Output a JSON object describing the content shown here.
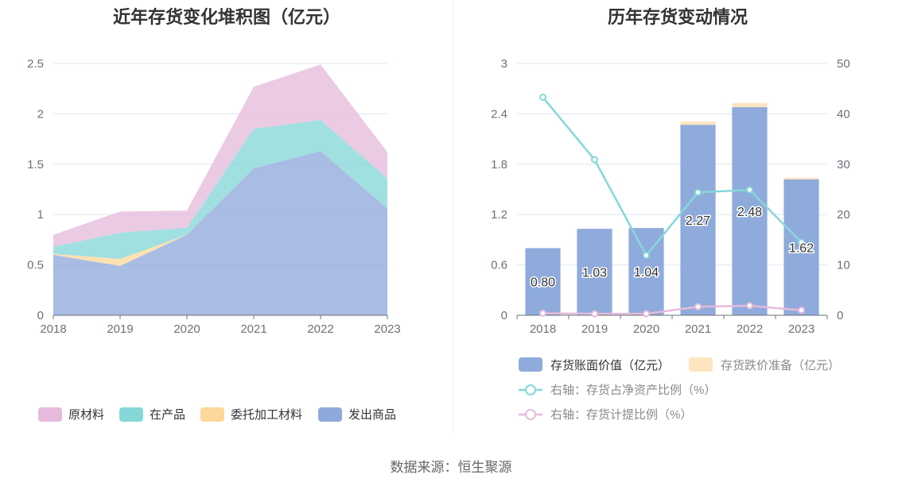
{
  "source_text": "数据来源：恒生聚源",
  "chart_data": [
    {
      "type": "area",
      "title": "近年存货变化堆积图（亿元）",
      "x": [
        "2018",
        "2019",
        "2020",
        "2021",
        "2022",
        "2023"
      ],
      "ylim": [
        0,
        2.5
      ],
      "yticks": [
        "0",
        "0.5",
        "1",
        "1.5",
        "2",
        "2.5"
      ],
      "stacked": true,
      "series": [
        {
          "name": "发出商品",
          "color": "#8fa9dc",
          "values": [
            0.6,
            0.49,
            0.8,
            1.46,
            1.63,
            1.06
          ]
        },
        {
          "name": "委托加工材料",
          "color": "#fdd89a",
          "values": [
            0.01,
            0.07,
            0.0,
            0.0,
            0.0,
            0.0
          ]
        },
        {
          "name": "在产品",
          "color": "#86d7d8",
          "values": [
            0.07,
            0.26,
            0.07,
            0.39,
            0.31,
            0.3
          ]
        },
        {
          "name": "原材料",
          "color": "#e6bbdc",
          "values": [
            0.12,
            0.21,
            0.17,
            0.42,
            0.55,
            0.26
          ]
        }
      ],
      "legend_order": [
        "原材料",
        "在产品",
        "委托加工材料",
        "发出商品"
      ],
      "grid": true,
      "legend_position": "bottom"
    },
    {
      "type": "bar",
      "title": "历年存货变动情况",
      "categories": [
        "2018",
        "2019",
        "2020",
        "2021",
        "2022",
        "2023"
      ],
      "ylim": [
        0,
        3
      ],
      "yticks": [
        "0",
        "0.6",
        "1.2",
        "1.8",
        "2.4",
        "3"
      ],
      "y2lim": [
        0,
        50
      ],
      "y2ticks": [
        "0",
        "10",
        "20",
        "30",
        "40",
        "50"
      ],
      "series": [
        {
          "name": "存货账面价值（亿元）",
          "kind": "bar",
          "color": "#8fabdc",
          "values": [
            0.8,
            1.03,
            1.04,
            2.27,
            2.48,
            1.62
          ],
          "labels": [
            "0.80",
            "1.03",
            "1.04",
            "2.27",
            "2.48",
            "1.62"
          ]
        },
        {
          "name": "存货跌价准备（亿元）",
          "kind": "bar-stack",
          "color": "#fde5c0",
          "values": [
            0,
            0,
            0,
            0.04,
            0.05,
            0.02
          ]
        },
        {
          "name": "右轴：存货占净资产比例（%）",
          "kind": "line",
          "axis": "right",
          "color": "#86d7d8",
          "values": [
            43.3,
            30.9,
            11.9,
            24.4,
            24.9,
            14.5
          ]
        },
        {
          "name": "右轴：存货计提比例（%）",
          "kind": "line",
          "axis": "right",
          "color": "#e6bbdc",
          "values": [
            0.4,
            0.3,
            0.3,
            1.7,
            1.9,
            1.0
          ]
        }
      ],
      "grid": true,
      "legend_position": "bottom"
    }
  ]
}
